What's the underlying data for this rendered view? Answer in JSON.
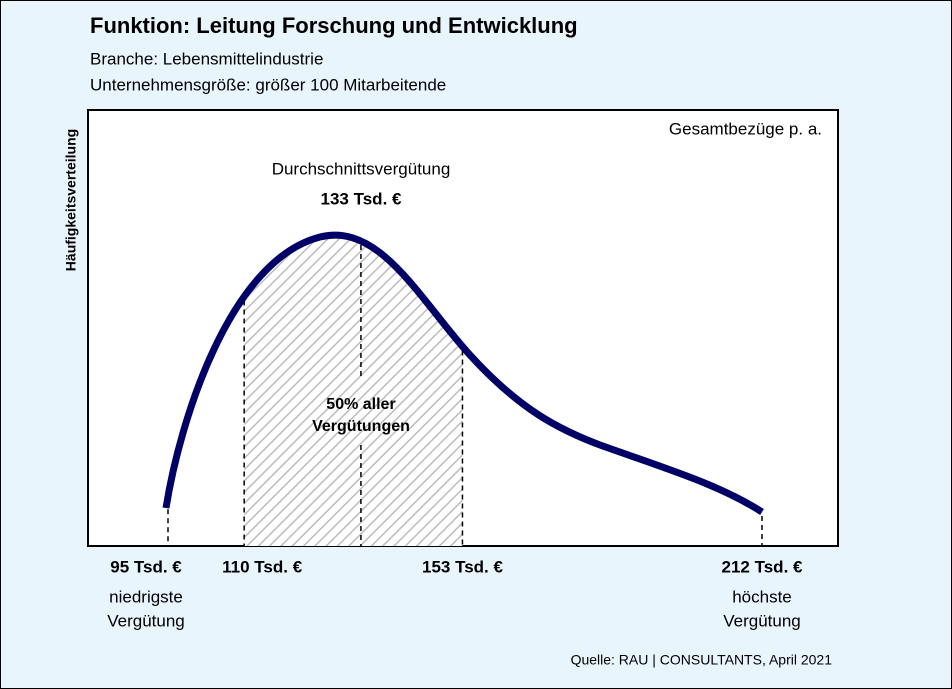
{
  "chart_data": {
    "type": "distribution",
    "title": "Funktion: Leitung Forschung und Entwicklung",
    "subtitles": [
      "Branche: Lebensmittelindustrie",
      "Unternehmensgröße: größer 100 Mitarbeitende"
    ],
    "y_label": "Häufigkeitsverteilung",
    "annotation": "Gesamtbezüge p. a.",
    "color": "#000066",
    "average": {
      "label": "Durchschnittsvergütung",
      "value": 133,
      "value_label": "133 Tsd. €"
    },
    "markers": [
      {
        "value": 95,
        "label": "95 Tsd. €",
        "note": [
          "niedrigste",
          "Vergütung"
        ]
      },
      {
        "value": 110,
        "label": "110 Tsd. €"
      },
      {
        "value": 153,
        "label": "153 Tsd. €"
      },
      {
        "value": 212,
        "label": "212 Tsd. €",
        "note": [
          "höchste",
          "Vergütung"
        ]
      }
    ],
    "range_label": [
      "50% aller",
      "Vergütungen"
    ],
    "source": "Quelle: RAU | CONSULTANTS, April 2021"
  }
}
